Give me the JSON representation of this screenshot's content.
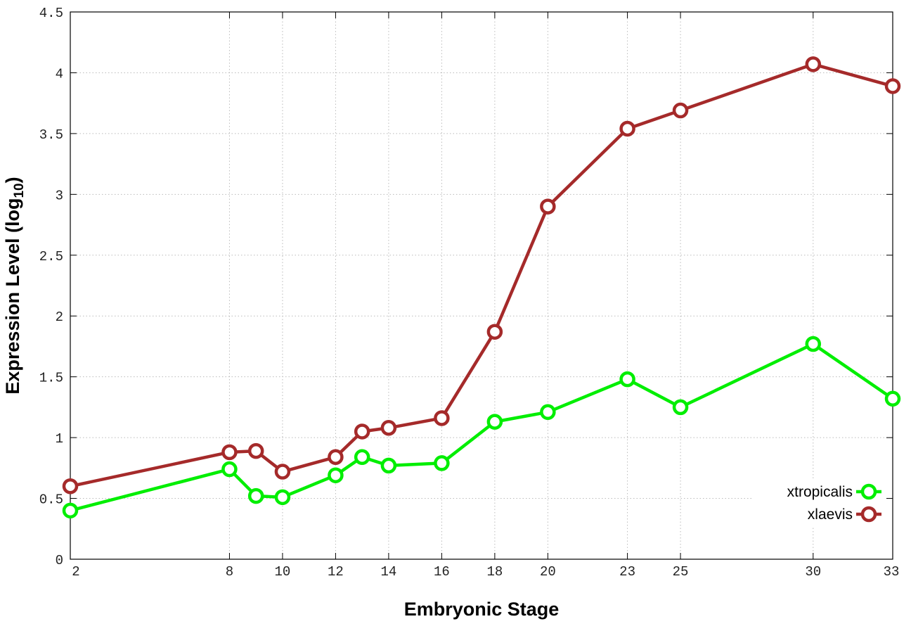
{
  "chart_data": {
    "type": "line",
    "xlabel": "Embryonic Stage",
    "ylabel_main": "Expression Level (log",
    "ylabel_sub": "10",
    "ylabel_close": ")",
    "xlim": [
      2,
      33
    ],
    "ylim": [
      0,
      4.5
    ],
    "x_ticks": [
      2,
      8,
      10,
      12,
      14,
      16,
      18,
      20,
      23,
      25,
      30,
      33
    ],
    "x_tick_labels": [
      "2",
      "8",
      "10",
      "12",
      "14",
      "16",
      "18",
      "20",
      "23",
      "25",
      "30",
      "33"
    ],
    "y_ticks": [
      0,
      0.5,
      1,
      1.5,
      2,
      2.5,
      3,
      3.5,
      4,
      4.5
    ],
    "y_tick_labels": [
      "0",
      "0.5",
      "1",
      "1.5",
      "2",
      "2.5",
      "3",
      "3.5",
      "4",
      "4.5"
    ],
    "grid": true,
    "legend_position": "bottom-right",
    "x": [
      2,
      8,
      9,
      10,
      12,
      13,
      14,
      16,
      18,
      20,
      23,
      25,
      30,
      33
    ],
    "series": [
      {
        "name": "xtropicalis",
        "color": "#00ee00",
        "values": [
          0.4,
          0.74,
          0.52,
          0.51,
          0.69,
          0.84,
          0.77,
          0.79,
          1.13,
          1.21,
          1.48,
          1.25,
          1.77,
          1.32
        ]
      },
      {
        "name": "xlaevis",
        "color": "#a52a2a",
        "values": [
          0.6,
          0.88,
          0.89,
          0.72,
          0.84,
          1.05,
          1.08,
          1.16,
          1.87,
          2.9,
          3.54,
          3.69,
          4.07,
          3.89
        ]
      }
    ]
  }
}
